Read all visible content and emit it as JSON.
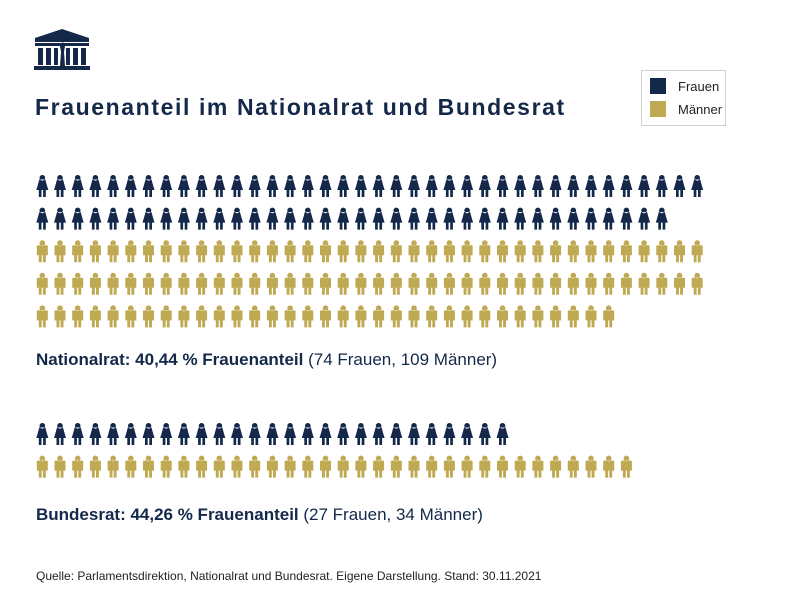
{
  "title": "Frauenanteil im Nationalrat und Bundesrat",
  "legend": [
    {
      "label": "Frauen",
      "color": "#14284a"
    },
    {
      "label": "Männer",
      "color": "#bfa952"
    }
  ],
  "chart_data": {
    "type": "pictogram",
    "icons_per_row": 38,
    "groups": [
      {
        "name": "Nationalrat",
        "women": 74,
        "men": 109,
        "caption_bold": "Nationalrat: 40,44 % Frauenanteil",
        "caption_rest": " (74 Frauen, 109 Männer)"
      },
      {
        "name": "Bundesrat",
        "women": 27,
        "men": 34,
        "caption_bold": "Bundesrat: 44,26 % Frauenanteil",
        "caption_rest": " (27 Frauen, 34 Männer)"
      }
    ]
  },
  "source": "Quelle: Parlamentsdirektion, Nationalrat und Bundesrat. Eigene Darstellung. Stand: 30.11.2021"
}
